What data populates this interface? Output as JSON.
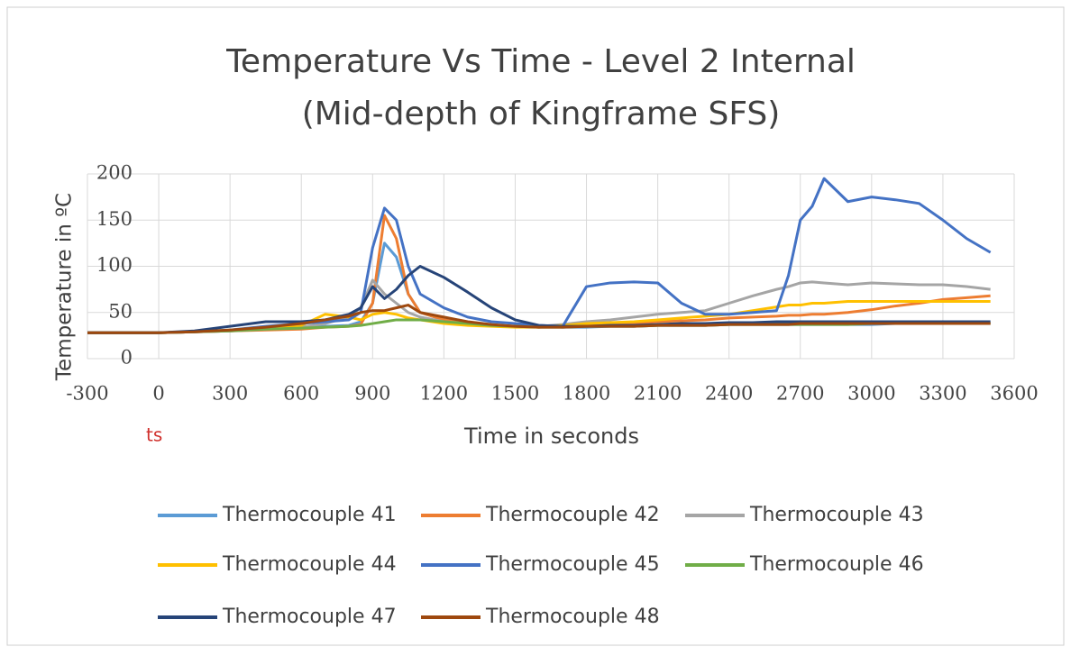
{
  "chart_data": {
    "type": "line",
    "title": "Temperature Vs Time - Level 2 Internal",
    "subtitle": "(Mid-depth of Kingframe SFS)",
    "x_label": "Time in seconds",
    "y_label": "Temperature in ºC",
    "annotation": "ts",
    "x": [
      -300,
      0,
      150,
      300,
      450,
      600,
      700,
      800,
      850,
      900,
      950,
      1000,
      1050,
      1100,
      1200,
      1300,
      1400,
      1500,
      1600,
      1700,
      1800,
      1900,
      2000,
      2100,
      2200,
      2300,
      2400,
      2500,
      2600,
      2650,
      2700,
      2750,
      2800,
      2900,
      3000,
      3100,
      3200,
      3300,
      3400,
      3500
    ],
    "xlim": [
      -300,
      3600
    ],
    "xticks": [
      -300,
      0,
      300,
      600,
      900,
      1200,
      1500,
      1800,
      2100,
      2400,
      2700,
      3000,
      3300,
      3600
    ],
    "ylim": [
      0,
      200
    ],
    "yticks": [
      0,
      50,
      100,
      150,
      200
    ],
    "grid": true,
    "legend": "bottom",
    "series": [
      {
        "name": "Thermocouple 41",
        "color": "#5b9bd5",
        "values": [
          28,
          28,
          29,
          30,
          32,
          33,
          35,
          36,
          40,
          60,
          125,
          110,
          70,
          50,
          42,
          38,
          36,
          35,
          35,
          34,
          34,
          35,
          35,
          36,
          36,
          36,
          37,
          37,
          37,
          37,
          37,
          37,
          37,
          37,
          37,
          38,
          38,
          38,
          38,
          38
        ]
      },
      {
        "name": "Thermocouple 42",
        "color": "#ed7d31",
        "values": [
          28,
          28,
          29,
          30,
          31,
          32,
          34,
          35,
          37,
          60,
          155,
          130,
          70,
          50,
          42,
          38,
          36,
          35,
          34,
          35,
          36,
          37,
          38,
          40,
          41,
          42,
          44,
          45,
          46,
          47,
          47,
          48,
          48,
          50,
          53,
          57,
          60,
          64,
          66,
          68
        ]
      },
      {
        "name": "Thermocouple 43",
        "color": "#a5a5a5",
        "values": [
          28,
          28,
          29,
          30,
          32,
          34,
          38,
          45,
          55,
          85,
          70,
          60,
          50,
          45,
          40,
          38,
          36,
          35,
          35,
          37,
          40,
          42,
          45,
          48,
          50,
          52,
          60,
          68,
          75,
          78,
          82,
          83,
          82,
          80,
          82,
          81,
          80,
          80,
          78,
          75
        ]
      },
      {
        "name": "Thermocouple 44",
        "color": "#ffc000",
        "values": [
          28,
          28,
          29,
          31,
          33,
          36,
          48,
          45,
          42,
          48,
          50,
          48,
          44,
          42,
          38,
          36,
          35,
          34,
          34,
          36,
          38,
          39,
          40,
          42,
          44,
          46,
          48,
          52,
          56,
          58,
          58,
          60,
          60,
          62,
          62,
          62,
          62,
          62,
          62,
          62
        ]
      },
      {
        "name": "Thermocouple 45",
        "color": "#4472c4",
        "values": [
          28,
          28,
          29,
          31,
          35,
          38,
          40,
          42,
          50,
          120,
          163,
          150,
          100,
          70,
          55,
          45,
          40,
          38,
          36,
          35,
          78,
          82,
          83,
          82,
          60,
          48,
          48,
          50,
          52,
          90,
          150,
          165,
          195,
          170,
          175,
          172,
          168,
          150,
          130,
          115
        ]
      },
      {
        "name": "Thermocouple 46",
        "color": "#70ad47",
        "values": [
          28,
          28,
          29,
          30,
          32,
          33,
          34,
          35,
          36,
          38,
          40,
          42,
          42,
          42,
          40,
          38,
          36,
          35,
          34,
          34,
          35,
          35,
          35,
          36,
          36,
          36,
          37,
          37,
          37,
          37,
          37,
          37,
          37,
          37,
          38,
          38,
          38,
          38,
          38,
          38
        ]
      },
      {
        "name": "Thermocouple 47",
        "color": "#264478",
        "values": [
          28,
          28,
          30,
          35,
          40,
          40,
          42,
          48,
          55,
          78,
          65,
          75,
          90,
          100,
          88,
          72,
          55,
          42,
          36,
          35,
          35,
          36,
          36,
          37,
          38,
          38,
          39,
          39,
          40,
          40,
          40,
          40,
          40,
          40,
          40,
          40,
          40,
          40,
          40,
          40
        ]
      },
      {
        "name": "Thermocouple 48",
        "color": "#9e480e",
        "values": [
          28,
          28,
          29,
          31,
          34,
          38,
          42,
          46,
          50,
          52,
          52,
          55,
          58,
          50,
          45,
          40,
          37,
          35,
          34,
          34,
          35,
          35,
          35,
          36,
          36,
          36,
          37,
          37,
          37,
          37,
          38,
          38,
          38,
          38,
          38,
          38,
          38,
          38,
          38,
          38
        ]
      }
    ]
  }
}
